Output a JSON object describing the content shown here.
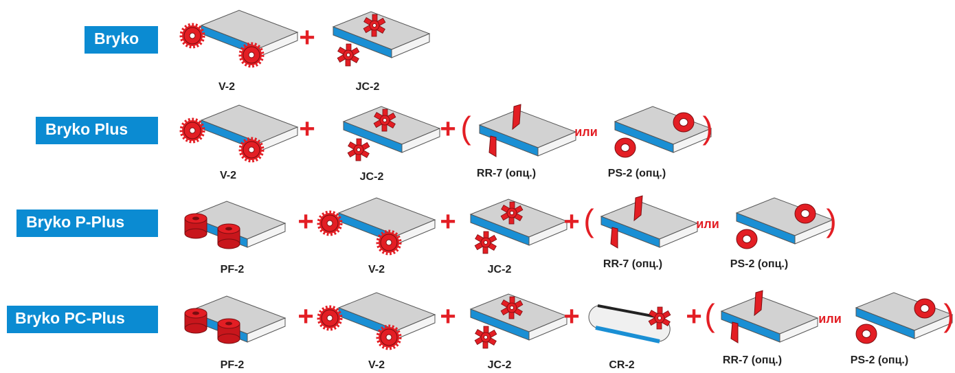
{
  "rows": [
    {
      "title": "Bryko",
      "parts": [
        "V-2",
        "JC-2"
      ],
      "signs": [
        "+"
      ]
    },
    {
      "title": "Bryko Plus",
      "parts": [
        "V-2",
        "JC-2",
        "RR-7 (опц.)",
        "PS-2 (опц.)"
      ],
      "signs": [
        "+",
        "+",
        "(",
        "или",
        ")"
      ]
    },
    {
      "title": "Bryko P-Plus",
      "parts": [
        "PF-2",
        "V-2",
        "JC-2",
        "RR-7 (опц.)",
        "PS-2 (опц.)"
      ],
      "signs": [
        "+",
        "+",
        "+",
        "(",
        "или",
        ")"
      ]
    },
    {
      "title": "Bryko PC-Plus",
      "parts": [
        "PF-2",
        "V-2",
        "JC-2",
        "CR-2",
        "RR-7 (опц.)",
        "PS-2 (опц.)"
      ],
      "signs": [
        "+",
        "+",
        "+",
        "+",
        "(",
        "или",
        ")"
      ]
    }
  ]
}
